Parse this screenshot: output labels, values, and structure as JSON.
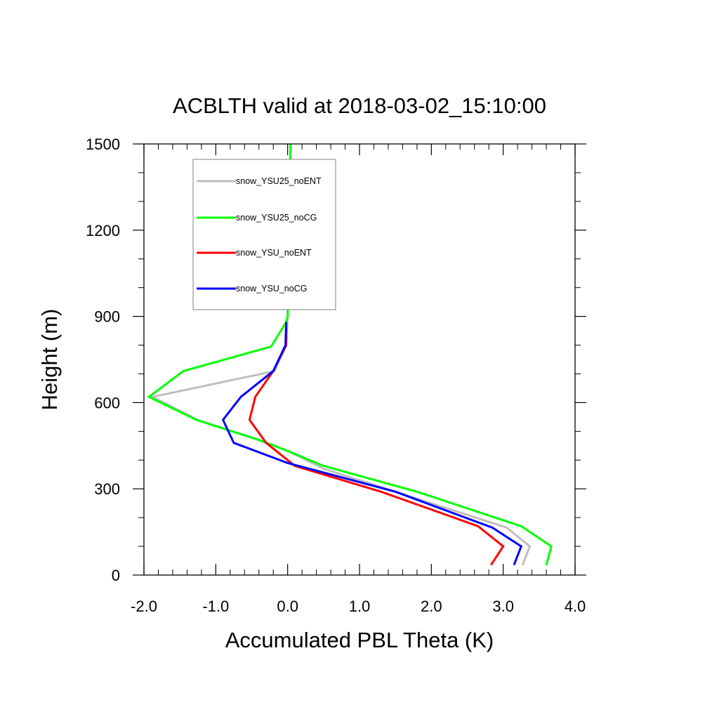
{
  "chart_data": {
    "type": "line",
    "title": "ACBLTH valid at 2018-03-02_15:10:00",
    "xlabel": "Accumulated PBL Theta (K)",
    "ylabel": "Height (m)",
    "xlim": [
      -2.0,
      4.0
    ],
    "ylim": [
      0,
      1500
    ],
    "xticks": [
      -2.0,
      -1.0,
      0.0,
      1.0,
      2.0,
      3.0,
      4.0
    ],
    "xtick_labels": [
      "-2.0",
      "-1.0",
      "0.0",
      "1.0",
      "2.0",
      "3.0",
      "4.0"
    ],
    "yticks": [
      0,
      300,
      600,
      900,
      1200,
      1500
    ],
    "ytick_labels": [
      "0",
      "300",
      "600",
      "900",
      "1200",
      "1500"
    ],
    "grid": false,
    "legend_position": "top-left",
    "series": [
      {
        "name": "snow_YSU25_noENT",
        "color": "#bebebe",
        "x": [
          3.27,
          3.37,
          3.05,
          1.5,
          0.5,
          0.02,
          -0.4,
          -1.25,
          -1.88,
          -0.18,
          -0.02,
          0.0,
          0.02,
          0.03,
          0.04
        ],
        "y": [
          35,
          100,
          165,
          290,
          370,
          430,
          470,
          540,
          620,
          710,
          800,
          900,
          1100,
          1300,
          1500
        ]
      },
      {
        "name": "snow_YSU25_noCG",
        "color": "#00ff00",
        "x": [
          3.6,
          3.67,
          3.25,
          1.8,
          0.5,
          0.02,
          -0.4,
          -1.27,
          -1.93,
          -1.45,
          -0.23,
          -0.02,
          0.0,
          0.02,
          0.03,
          0.04
        ],
        "y": [
          35,
          100,
          170,
          290,
          380,
          430,
          470,
          540,
          620,
          710,
          795,
          880,
          900,
          1100,
          1300,
          1500
        ]
      },
      {
        "name": "snow_YSU_noENT",
        "color": "#ff0000",
        "x": [
          2.83,
          3.0,
          2.65,
          1.3,
          0.1,
          -0.3,
          -0.53,
          -0.45,
          -0.2,
          -0.02,
          -0.02
        ],
        "y": [
          35,
          100,
          170,
          290,
          380,
          460,
          540,
          620,
          710,
          800,
          880
        ]
      },
      {
        "name": "snow_YSU_noCG",
        "color": "#0000ff",
        "x": [
          3.15,
          3.25,
          2.85,
          1.5,
          0.0,
          -0.75,
          -0.9,
          -0.65,
          -0.2,
          -0.03,
          -0.02
        ],
        "y": [
          35,
          100,
          165,
          290,
          390,
          460,
          540,
          620,
          710,
          800,
          880
        ]
      }
    ]
  }
}
